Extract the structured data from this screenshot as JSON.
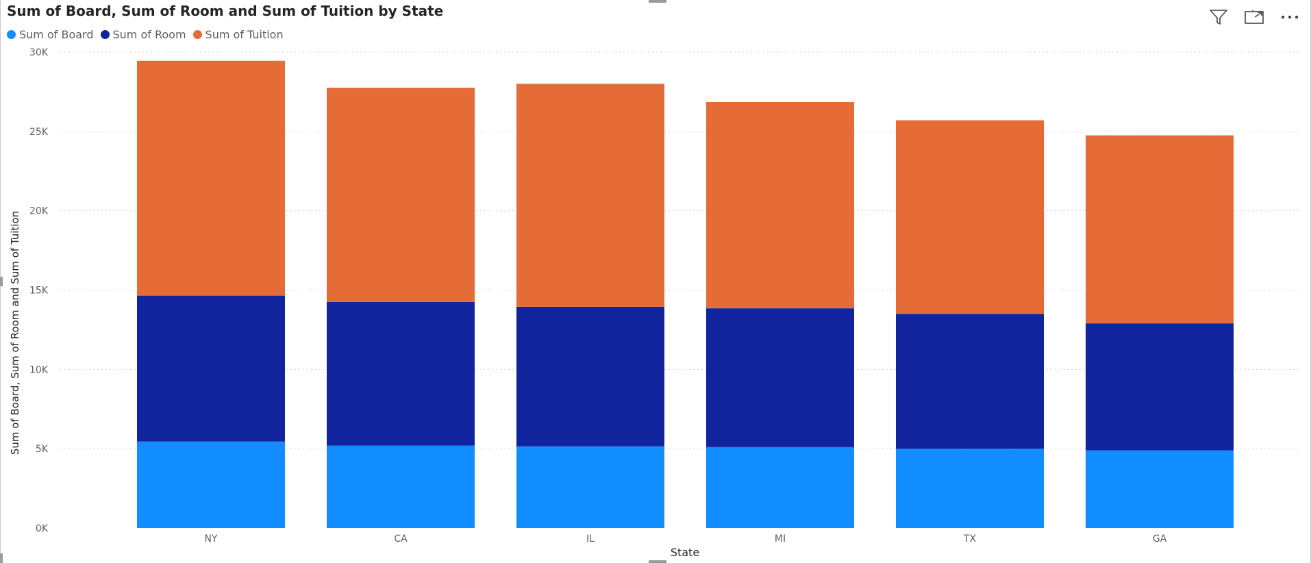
{
  "visual": {
    "title": "Sum of Board, Sum of Room and Sum of Tuition by State",
    "icons": [
      "filter-icon",
      "focus-mode-icon",
      "more-options-icon"
    ]
  },
  "chart_data": {
    "type": "bar",
    "stacked": true,
    "title": "Sum of Board, Sum of Room and Sum of Tuition by State",
    "xlabel": "State",
    "ylabel": "Sum of Board, Sum of Room and Sum of Tuition",
    "categories": [
      "NY",
      "CA",
      "IL",
      "MI",
      "TX",
      "GA"
    ],
    "ylim": [
      0,
      30000
    ],
    "yticks": [
      0,
      5000,
      10000,
      15000,
      20000,
      25000,
      30000
    ],
    "ytick_labels": [
      "0K",
      "5K",
      "10K",
      "15K",
      "20K",
      "25K",
      "30K"
    ],
    "grid": true,
    "legend_position": "top-left",
    "series": [
      {
        "name": "Sum of Board",
        "color": "#118dff",
        "values": [
          5450,
          5200,
          5150,
          5100,
          5000,
          4900
        ]
      },
      {
        "name": "Sum of Room",
        "color": "#12239e",
        "values": [
          9200,
          9050,
          8800,
          8750,
          8500,
          8000
        ]
      },
      {
        "name": "Sum of Tuition",
        "color": "#e66c37",
        "values": [
          14800,
          13500,
          14050,
          13000,
          12200,
          11850
        ]
      }
    ]
  }
}
